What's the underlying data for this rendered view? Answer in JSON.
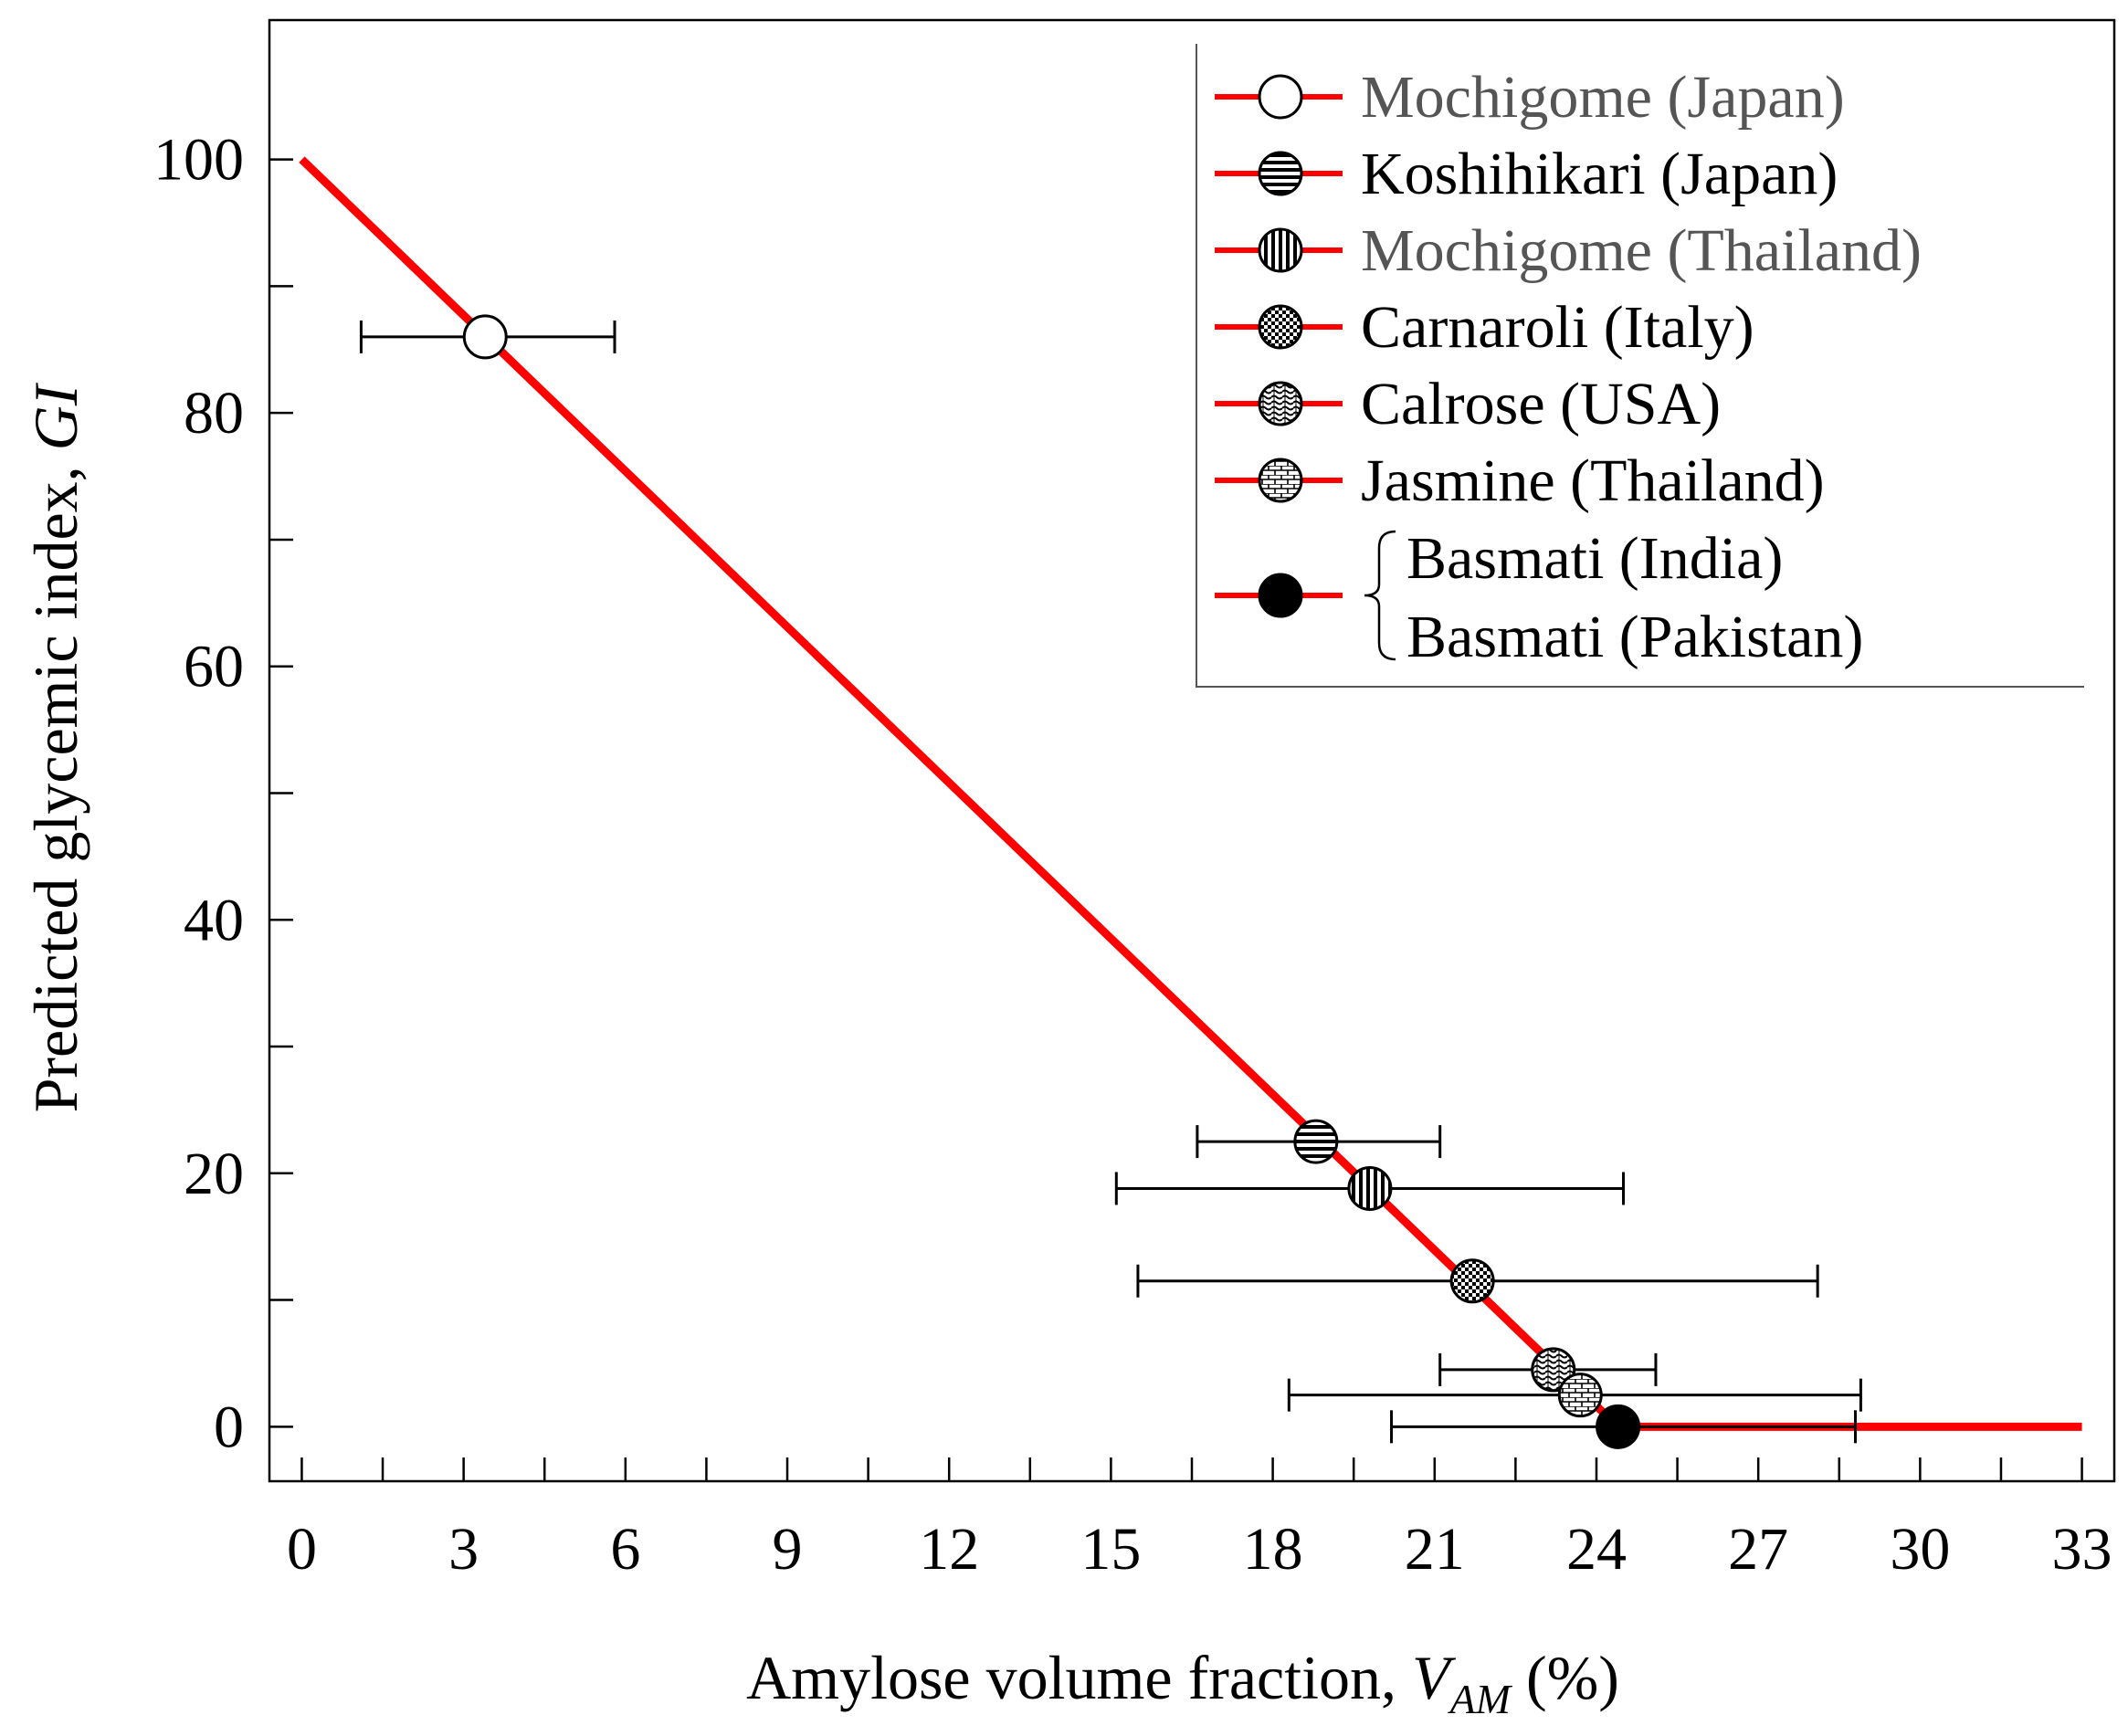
{
  "chart_data": {
    "type": "scatter",
    "xlabel": "Amylose volume fraction, ",
    "xlabel_var": "V",
    "xlabel_sub": "AM",
    "xlabel_unit": " (%)",
    "ylabel": "Predicted glycemic index, ",
    "ylabel_var": "GI",
    "xlim": [
      -0.6,
      33.6
    ],
    "ylim": [
      -4.3,
      111
    ],
    "x_ticks": [
      0,
      3,
      6,
      9,
      12,
      15,
      18,
      21,
      24,
      27,
      30,
      33
    ],
    "x_tick_labels": [
      "0",
      "3",
      "6",
      "9",
      "12",
      "15",
      "18",
      "21",
      "24",
      "27",
      "30",
      "33"
    ],
    "x_minor_ticks": [
      1.5,
      4.5,
      7.5,
      10.5,
      13.5,
      16.5,
      19.5,
      22.5,
      25.5,
      28.5,
      31.5
    ],
    "y_ticks": [
      0,
      20,
      40,
      60,
      80,
      100
    ],
    "y_tick_labels": [
      "0",
      "20",
      "40",
      "60",
      "80",
      "100"
    ],
    "y_minor_ticks": [
      10,
      30,
      50,
      70,
      90
    ],
    "fit_line": {
      "color": "#ff0000",
      "points": [
        [
          0,
          100
        ],
        [
          24.4,
          0
        ],
        [
          33,
          0
        ]
      ]
    },
    "series": [
      {
        "name": "Mochigome (Japan)",
        "x": 3.4,
        "y": 86,
        "xerr_low": 1.1,
        "xerr_high": 5.8,
        "marker": "open",
        "label_color": "grey"
      },
      {
        "name": "Koshihikari (Japan)",
        "x": 18.8,
        "y": 22.5,
        "xerr_low": 16.6,
        "xerr_high": 21.1,
        "marker": "hstripe",
        "label_color": "black"
      },
      {
        "name": "Mochigome (Thailand)",
        "x": 19.8,
        "y": 18.8,
        "xerr_low": 15.1,
        "xerr_high": 24.5,
        "marker": "vstripe",
        "label_color": "grey"
      },
      {
        "name": "Carnaroli (Italy)",
        "x": 21.7,
        "y": 11.5,
        "xerr_low": 15.5,
        "xerr_high": 28.1,
        "marker": "checker",
        "label_color": "black"
      },
      {
        "name": "Calrose (USA)",
        "x": 23.2,
        "y": 4.5,
        "xerr_low": 21.1,
        "xerr_high": 25.1,
        "marker": "wave",
        "label_color": "black"
      },
      {
        "name": "Jasmine (Thailand)",
        "x": 23.7,
        "y": 2.5,
        "xerr_low": 18.3,
        "xerr_high": 28.9,
        "marker": "brick",
        "label_color": "black"
      },
      {
        "name": "Basmati",
        "x": 24.4,
        "y": 0,
        "xerr_low": 20.2,
        "xerr_high": 28.8,
        "marker": "solid",
        "label_color": "black"
      }
    ],
    "legend": {
      "placement": "top-right",
      "entries": [
        {
          "label": "Mochigome (Japan)",
          "marker": "open",
          "color": "grey"
        },
        {
          "label": "Koshihikari (Japan)",
          "marker": "hstripe",
          "color": "black"
        },
        {
          "label": "Mochigome (Thailand)",
          "marker": "vstripe",
          "color": "grey"
        },
        {
          "label": "Carnaroli (Italy)",
          "marker": "checker",
          "color": "black"
        },
        {
          "label": "Calrose (USA)",
          "marker": "wave",
          "color": "black"
        },
        {
          "label": "Jasmine (Thailand)",
          "marker": "brick",
          "color": "black"
        }
      ],
      "group_entry": {
        "marker": "solid",
        "labels": [
          "Basmati (India)",
          "Basmati (Pakistan)"
        ]
      }
    }
  }
}
